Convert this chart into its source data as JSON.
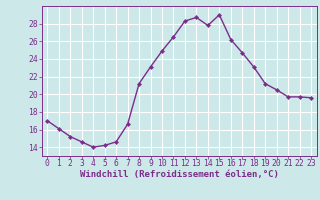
{
  "x": [
    0,
    1,
    2,
    3,
    4,
    5,
    6,
    7,
    8,
    9,
    10,
    11,
    12,
    13,
    14,
    15,
    16,
    17,
    18,
    19,
    20,
    21,
    22,
    23
  ],
  "y": [
    17.0,
    16.1,
    15.2,
    14.6,
    14.0,
    14.2,
    14.6,
    16.6,
    21.2,
    23.1,
    24.9,
    26.5,
    28.3,
    28.7,
    27.8,
    29.0,
    26.2,
    24.7,
    23.1,
    21.2,
    20.5,
    19.7,
    19.7,
    19.6
  ],
  "line_color": "#7b2d8b",
  "marker": "D",
  "marker_size": 2.2,
  "line_width": 1.0,
  "bg_color": "#cce8e8",
  "grid_color": "#ffffff",
  "xlabel": "Windchill (Refroidissement éolien,°C)",
  "ylabel": "",
  "ylim": [
    13.0,
    30.0
  ],
  "xlim": [
    -0.5,
    23.5
  ],
  "yticks": [
    14,
    16,
    18,
    20,
    22,
    24,
    26,
    28
  ],
  "xticks": [
    0,
    1,
    2,
    3,
    4,
    5,
    6,
    7,
    8,
    9,
    10,
    11,
    12,
    13,
    14,
    15,
    16,
    17,
    18,
    19,
    20,
    21,
    22,
    23
  ],
  "tick_color": "#7b2d8b",
  "xlabel_fontsize": 6.5,
  "tick_fontsize": 5.8
}
